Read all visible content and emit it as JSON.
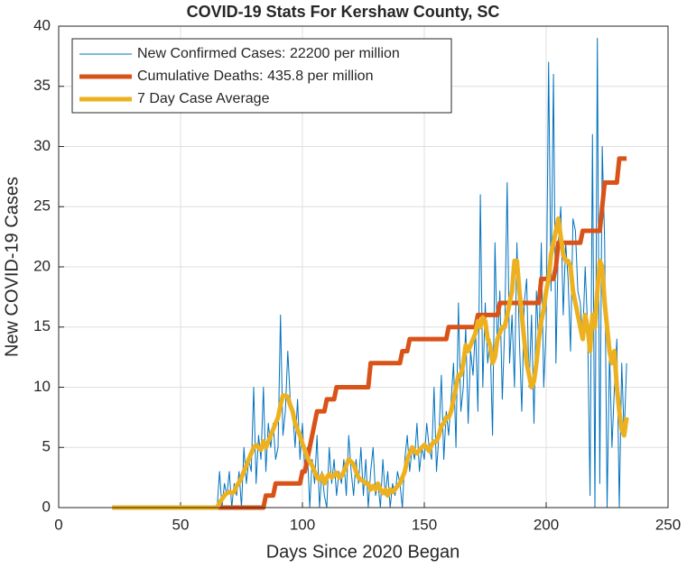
{
  "chart_data": {
    "type": "line",
    "title": "COVID-19 Stats For Kershaw County, SC",
    "xlabel": "Days Since 2020 Began",
    "ylabel": "New COVID-19 Cases",
    "xlim": [
      0,
      250
    ],
    "ylim": [
      0,
      40
    ],
    "xticks": [
      0,
      50,
      100,
      150,
      200,
      250
    ],
    "yticks": [
      0,
      5,
      10,
      15,
      20,
      25,
      30,
      35,
      40
    ],
    "grid": true,
    "legend": "upper-left",
    "x": [
      22,
      23,
      24,
      25,
      26,
      27,
      28,
      29,
      30,
      31,
      32,
      33,
      34,
      35,
      36,
      37,
      38,
      39,
      40,
      41,
      42,
      43,
      44,
      45,
      46,
      47,
      48,
      49,
      50,
      51,
      52,
      53,
      54,
      55,
      56,
      57,
      58,
      59,
      60,
      61,
      62,
      63,
      64,
      65,
      66,
      67,
      68,
      69,
      70,
      71,
      72,
      73,
      74,
      75,
      76,
      77,
      78,
      79,
      80,
      81,
      82,
      83,
      84,
      85,
      86,
      87,
      88,
      89,
      90,
      91,
      92,
      93,
      94,
      95,
      96,
      97,
      98,
      99,
      100,
      101,
      102,
      103,
      104,
      105,
      106,
      107,
      108,
      109,
      110,
      111,
      112,
      113,
      114,
      115,
      116,
      117,
      118,
      119,
      120,
      121,
      122,
      123,
      124,
      125,
      126,
      127,
      128,
      129,
      130,
      131,
      132,
      133,
      134,
      135,
      136,
      137,
      138,
      139,
      140,
      141,
      142,
      143,
      144,
      145,
      146,
      147,
      148,
      149,
      150,
      151,
      152,
      153,
      154,
      155,
      156,
      157,
      158,
      159,
      160,
      161,
      162,
      163,
      164,
      165,
      166,
      167,
      168,
      169,
      170,
      171,
      172,
      173,
      174,
      175,
      176,
      177,
      178,
      179,
      180,
      181,
      182,
      183,
      184,
      185,
      186,
      187,
      188,
      189,
      190,
      191,
      192,
      193,
      194,
      195,
      196,
      197,
      198,
      199,
      200,
      201,
      202,
      203,
      204,
      205,
      206,
      207,
      208,
      209,
      210,
      211,
      212,
      213,
      214,
      215,
      216,
      217,
      218,
      219,
      220,
      221,
      222,
      223,
      224,
      225,
      226,
      227,
      228,
      229,
      230,
      231,
      232,
      233
    ],
    "series": [
      {
        "name": "New Confirmed Cases: 22200 per million",
        "color": "#0072bd",
        "values": [
          0,
          0,
          0,
          0,
          0,
          0,
          0,
          0,
          0,
          0,
          0,
          0,
          0,
          0,
          0,
          0,
          0,
          0,
          0,
          0,
          0,
          0,
          0,
          0,
          0,
          0,
          0,
          0,
          0,
          0,
          0,
          0,
          0,
          0,
          0,
          0,
          0,
          0,
          0,
          0,
          0,
          0,
          0,
          0,
          3,
          0,
          2,
          1,
          3,
          0,
          2,
          1,
          3,
          0,
          5,
          2,
          4,
          3,
          10,
          2,
          6,
          4,
          10,
          3,
          7,
          5,
          7,
          4,
          5,
          16,
          6,
          8,
          13,
          9,
          8,
          5,
          9,
          4,
          7,
          3,
          5,
          0,
          4,
          2,
          6,
          0,
          3,
          1,
          0,
          5,
          2,
          4,
          1,
          3,
          2,
          4,
          1,
          6,
          3,
          1,
          4,
          2,
          5,
          1,
          4,
          0,
          3,
          5,
          1,
          2,
          0,
          4,
          1,
          3,
          0,
          2,
          1,
          3,
          2,
          0,
          4,
          6,
          3,
          5,
          4,
          7,
          3,
          5,
          4,
          7,
          5,
          4,
          10,
          3,
          6,
          11,
          4,
          8,
          6,
          9,
          12,
          5,
          17,
          8,
          10,
          15,
          7,
          13,
          11,
          15,
          8,
          26,
          10,
          17,
          12,
          14,
          6,
          22,
          13,
          18,
          9,
          15,
          27,
          12,
          16,
          10,
          22,
          14,
          8,
          17,
          19,
          10,
          16,
          7,
          18,
          13,
          22,
          10,
          15,
          37,
          18,
          36,
          12,
          22,
          25,
          16,
          22,
          19,
          13,
          24,
          23,
          18,
          17,
          14,
          20,
          15,
          1,
          31,
          0,
          39,
          2,
          30,
          22,
          0,
          13,
          5,
          10,
          14,
          0,
          12,
          6,
          12
        ]
      },
      {
        "name": "Cumulative Deaths: 435.8 per million",
        "color": "#d95319",
        "values": [
          0,
          0,
          0,
          0,
          0,
          0,
          0,
          0,
          0,
          0,
          0,
          0,
          0,
          0,
          0,
          0,
          0,
          0,
          0,
          0,
          0,
          0,
          0,
          0,
          0,
          0,
          0,
          0,
          0,
          0,
          0,
          0,
          0,
          0,
          0,
          0,
          0,
          0,
          0,
          0,
          0,
          0,
          0,
          0,
          0,
          0,
          0,
          0,
          0,
          0,
          0,
          0,
          0,
          0,
          0,
          0,
          0,
          0,
          0,
          0,
          0,
          0,
          0,
          1,
          1,
          1,
          1,
          2,
          2,
          2,
          2,
          2,
          2,
          2,
          2,
          2,
          2,
          2,
          3,
          3,
          4,
          5,
          6,
          7,
          8,
          8,
          8,
          8,
          9,
          9,
          9,
          9,
          10,
          10,
          10,
          10,
          10,
          10,
          10,
          10,
          10,
          10,
          10,
          10,
          10,
          10,
          12,
          12,
          12,
          12,
          12,
          12,
          12,
          12,
          12,
          12,
          12,
          12,
          12,
          13,
          13,
          13,
          14,
          14,
          14,
          14,
          14,
          14,
          14,
          14,
          14,
          14,
          14,
          14,
          14,
          14,
          14,
          14,
          15,
          15,
          15,
          15,
          15,
          15,
          15,
          15,
          15,
          15,
          15,
          15,
          16,
          16,
          16,
          16,
          16,
          16,
          16,
          16,
          16,
          17,
          17,
          17,
          17,
          17,
          17,
          17,
          17,
          17,
          17,
          17,
          17,
          17,
          17,
          17,
          17,
          17,
          19,
          19,
          19,
          19,
          19,
          19,
          20,
          22,
          22,
          22,
          22,
          22,
          22,
          22,
          22,
          22,
          22,
          23,
          23,
          23,
          23,
          23,
          23,
          23,
          23,
          25,
          27,
          27,
          27,
          27,
          27,
          27,
          29,
          29,
          29,
          29
        ]
      },
      {
        "name": "7 Day Case Average",
        "color": "#edb120",
        "values": [
          0,
          0,
          0,
          0,
          0,
          0,
          0,
          0,
          0,
          0,
          0,
          0,
          0,
          0,
          0,
          0,
          0,
          0,
          0,
          0,
          0,
          0,
          0,
          0,
          0,
          0,
          0,
          0,
          0,
          0,
          0,
          0,
          0,
          0,
          0,
          0,
          0,
          0,
          0,
          0,
          0,
          0,
          0,
          0,
          0.4,
          0.7,
          1,
          1.2,
          1.3,
          1.2,
          1.3,
          1.8,
          2.1,
          2.5,
          3,
          3.5,
          4,
          4.5,
          5,
          5.2,
          5,
          4.8,
          5.5,
          5,
          5.5,
          6,
          6.5,
          7,
          7.5,
          8.5,
          9.3,
          9.3,
          9.2,
          8.5,
          8,
          7,
          6.5,
          6,
          5.3,
          4.8,
          4.2,
          3.8,
          3.5,
          3,
          2.5,
          2.3,
          2.7,
          2,
          2.5,
          2.8,
          2.5,
          2.7,
          2.9,
          2.5,
          2.6,
          3,
          3.5,
          4,
          3.8,
          3.6,
          3,
          2.5,
          2.3,
          2.2,
          2,
          2,
          1.5,
          1.8,
          1.5,
          2,
          1.5,
          1.2,
          1.5,
          1,
          1.5,
          1.3,
          1.5,
          1.8,
          2,
          2.5,
          3,
          4,
          4.5,
          5,
          4.7,
          4.5,
          4.8,
          5,
          5.2,
          5,
          4.7,
          5.2,
          5.5,
          5.5,
          6,
          6.8,
          7,
          7.5,
          7.5,
          8,
          9,
          10,
          11,
          11,
          12,
          13.5,
          13,
          13.5,
          14,
          14.5,
          15.5,
          15,
          15.8,
          15.5,
          14,
          13.5,
          12,
          12.5,
          14,
          14.5,
          15,
          15,
          16,
          17,
          18,
          20.5,
          20.5,
          18,
          16,
          14,
          12,
          11,
          10,
          10.5,
          12,
          14,
          15.5,
          16.5,
          18,
          19,
          21,
          22,
          23,
          24,
          22.5,
          21,
          20.5,
          20.5,
          20,
          18,
          17,
          16,
          15,
          14,
          16,
          15,
          13,
          16,
          15,
          18,
          20.5,
          20,
          17,
          15,
          13,
          12,
          13,
          10,
          8,
          6.5,
          6,
          7.5
        ]
      }
    ]
  }
}
